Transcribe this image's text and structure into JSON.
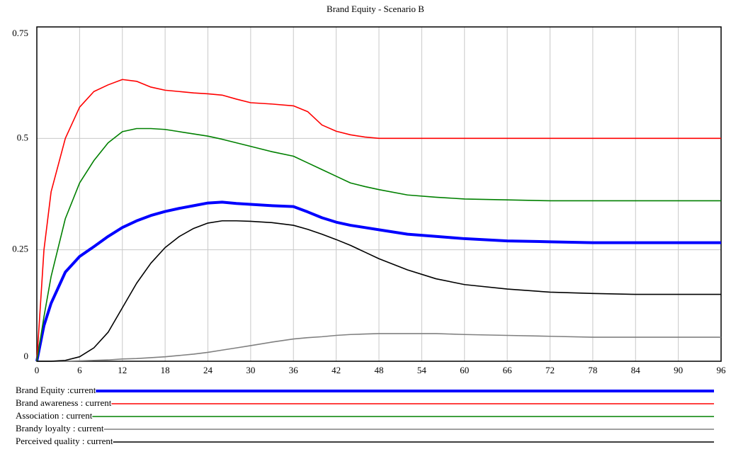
{
  "chart_data": {
    "type": "line",
    "title": "Brand Equity - Scenario B",
    "x": [
      0,
      1,
      2,
      4,
      6,
      8,
      10,
      12,
      14,
      16,
      18,
      20,
      22,
      24,
      26,
      28,
      30,
      33,
      36,
      38,
      40,
      42,
      44,
      46,
      48,
      52,
      56,
      60,
      66,
      72,
      78,
      84,
      90,
      96
    ],
    "xlim": [
      0,
      96
    ],
    "xticks": [
      0,
      6,
      12,
      18,
      24,
      30,
      36,
      42,
      48,
      54,
      60,
      66,
      72,
      78,
      84,
      90,
      96
    ],
    "ylim": [
      0,
      0.75
    ],
    "yticks": [
      0,
      0.25,
      0.5,
      0.75
    ],
    "grid": true,
    "legend": "bottom",
    "series": [
      {
        "name": "Brand Equity :current",
        "color": "#0000ff",
        "values": [
          0,
          0.08,
          0.13,
          0.2,
          0.235,
          0.257,
          0.28,
          0.3,
          0.315,
          0.327,
          0.336,
          0.343,
          0.349,
          0.355,
          0.357,
          0.354,
          0.352,
          0.349,
          0.347,
          0.335,
          0.322,
          0.312,
          0.305,
          0.3,
          0.295,
          0.285,
          0.28,
          0.275,
          0.27,
          0.268,
          0.266,
          0.266,
          0.266,
          0.266
        ]
      },
      {
        "name": "Brand awareness : current",
        "color": "#ff0000",
        "values": [
          0,
          0.25,
          0.38,
          0.5,
          0.57,
          0.605,
          0.62,
          0.632,
          0.628,
          0.615,
          0.608,
          0.605,
          0.602,
          0.6,
          0.597,
          0.588,
          0.58,
          0.577,
          0.573,
          0.56,
          0.53,
          0.516,
          0.508,
          0.503,
          0.5,
          0.5,
          0.5,
          0.5,
          0.5,
          0.5,
          0.5,
          0.5,
          0.5,
          0.5
        ]
      },
      {
        "name": "Association : current",
        "color": "#008000",
        "values": [
          0,
          0.1,
          0.19,
          0.32,
          0.4,
          0.45,
          0.49,
          0.515,
          0.522,
          0.522,
          0.52,
          0.515,
          0.51,
          0.505,
          0.498,
          0.49,
          0.482,
          0.47,
          0.46,
          0.445,
          0.43,
          0.415,
          0.4,
          0.392,
          0.385,
          0.373,
          0.368,
          0.364,
          0.362,
          0.36,
          0.36,
          0.36,
          0.36,
          0.36
        ]
      },
      {
        "name": "Brandy loyalty : current",
        "color": "#808080",
        "values": [
          0,
          0,
          0,
          0,
          0.001,
          0.002,
          0.003,
          0.005,
          0.006,
          0.008,
          0.01,
          0.013,
          0.016,
          0.02,
          0.025,
          0.03,
          0.035,
          0.043,
          0.05,
          0.053,
          0.055,
          0.058,
          0.06,
          0.061,
          0.062,
          0.062,
          0.062,
          0.06,
          0.058,
          0.056,
          0.054,
          0.054,
          0.054,
          0.054
        ]
      },
      {
        "name": "Perceived quality : current",
        "color": "#000000",
        "values": [
          0,
          0,
          0,
          0.002,
          0.01,
          0.03,
          0.065,
          0.12,
          0.175,
          0.22,
          0.255,
          0.28,
          0.298,
          0.31,
          0.315,
          0.315,
          0.314,
          0.311,
          0.305,
          0.296,
          0.285,
          0.273,
          0.26,
          0.245,
          0.23,
          0.205,
          0.185,
          0.172,
          0.162,
          0.155,
          0.152,
          0.15,
          0.15,
          0.15
        ]
      }
    ]
  }
}
